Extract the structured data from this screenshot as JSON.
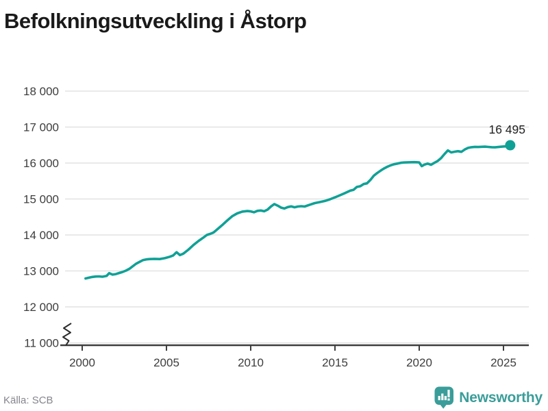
{
  "header": {
    "title": "Befolkningsutveckling i Åstorp"
  },
  "footer": {
    "source": "Källa: SCB",
    "brand": "Newsworthy"
  },
  "colors": {
    "line": "#10a196",
    "grid": "#e2e2e2",
    "axis": "#3d3d3d",
    "tick_text": "#3d3d3d",
    "title_text": "#1a1a1a",
    "source_text": "#85858d",
    "brand_teal": "#3a9d99"
  },
  "chart_data": {
    "type": "line",
    "title": "Befolkningsutveckling i Åstorp",
    "xlabel": "",
    "ylabel": "",
    "grid": "horizontal",
    "axis_break_at_bottom": true,
    "xlim": [
      1998.9,
      2026.5
    ],
    "ylim": [
      11000,
      18000
    ],
    "x_ticks": [
      2000,
      2005,
      2010,
      2015,
      2020,
      2025
    ],
    "y_ticks": [
      11000,
      12000,
      13000,
      14000,
      15000,
      16000,
      17000,
      18000
    ],
    "y_tick_labels": [
      "11 000",
      "12 000",
      "13 000",
      "14 000",
      "15 000",
      "16 000",
      "17 000",
      "18 000"
    ],
    "end_label": "16 495",
    "end_value": 16495,
    "series": [
      {
        "name": "Befolkning",
        "color": "#10a196",
        "points": [
          [
            2000.2,
            12790
          ],
          [
            2000.4,
            12812
          ],
          [
            2000.6,
            12833
          ],
          [
            2000.8,
            12843
          ],
          [
            2001.0,
            12848
          ],
          [
            2001.2,
            12838
          ],
          [
            2001.45,
            12862
          ],
          [
            2001.6,
            12938
          ],
          [
            2001.8,
            12898
          ],
          [
            2002.0,
            12912
          ],
          [
            2002.2,
            12942
          ],
          [
            2002.4,
            12972
          ],
          [
            2002.6,
            13010
          ],
          [
            2002.8,
            13060
          ],
          [
            2003.0,
            13130
          ],
          [
            2003.2,
            13200
          ],
          [
            2003.4,
            13250
          ],
          [
            2003.6,
            13300
          ],
          [
            2003.8,
            13320
          ],
          [
            2004.0,
            13330
          ],
          [
            2004.3,
            13335
          ],
          [
            2004.6,
            13330
          ],
          [
            2004.9,
            13355
          ],
          [
            2005.2,
            13395
          ],
          [
            2005.4,
            13430
          ],
          [
            2005.6,
            13520
          ],
          [
            2005.8,
            13440
          ],
          [
            2006.0,
            13480
          ],
          [
            2006.3,
            13590
          ],
          [
            2006.6,
            13720
          ],
          [
            2006.9,
            13830
          ],
          [
            2007.2,
            13930
          ],
          [
            2007.4,
            14000
          ],
          [
            2007.6,
            14030
          ],
          [
            2007.8,
            14070
          ],
          [
            2008.0,
            14150
          ],
          [
            2008.3,
            14270
          ],
          [
            2008.6,
            14400
          ],
          [
            2008.9,
            14520
          ],
          [
            2009.2,
            14600
          ],
          [
            2009.5,
            14650
          ],
          [
            2009.8,
            14665
          ],
          [
            2010.0,
            14655
          ],
          [
            2010.2,
            14630
          ],
          [
            2010.4,
            14670
          ],
          [
            2010.6,
            14680
          ],
          [
            2010.8,
            14660
          ],
          [
            2011.0,
            14705
          ],
          [
            2011.2,
            14790
          ],
          [
            2011.4,
            14860
          ],
          [
            2011.6,
            14815
          ],
          [
            2011.8,
            14760
          ],
          [
            2012.0,
            14735
          ],
          [
            2012.2,
            14775
          ],
          [
            2012.4,
            14795
          ],
          [
            2012.6,
            14770
          ],
          [
            2012.8,
            14790
          ],
          [
            2013.0,
            14800
          ],
          [
            2013.2,
            14790
          ],
          [
            2013.5,
            14840
          ],
          [
            2013.8,
            14885
          ],
          [
            2014.1,
            14915
          ],
          [
            2014.4,
            14945
          ],
          [
            2014.7,
            14990
          ],
          [
            2015.0,
            15045
          ],
          [
            2015.3,
            15105
          ],
          [
            2015.6,
            15165
          ],
          [
            2015.9,
            15230
          ],
          [
            2016.1,
            15255
          ],
          [
            2016.3,
            15335
          ],
          [
            2016.5,
            15355
          ],
          [
            2016.7,
            15415
          ],
          [
            2016.9,
            15435
          ],
          [
            2017.1,
            15530
          ],
          [
            2017.3,
            15645
          ],
          [
            2017.5,
            15720
          ],
          [
            2017.7,
            15785
          ],
          [
            2017.9,
            15845
          ],
          [
            2018.1,
            15895
          ],
          [
            2018.3,
            15935
          ],
          [
            2018.5,
            15965
          ],
          [
            2018.7,
            15985
          ],
          [
            2018.9,
            16005
          ],
          [
            2019.1,
            16015
          ],
          [
            2019.4,
            16020
          ],
          [
            2019.7,
            16025
          ],
          [
            2019.9,
            16020
          ],
          [
            2020.0,
            16015
          ],
          [
            2020.15,
            15915
          ],
          [
            2020.3,
            15955
          ],
          [
            2020.5,
            15985
          ],
          [
            2020.7,
            15950
          ],
          [
            2020.9,
            16005
          ],
          [
            2021.1,
            16060
          ],
          [
            2021.3,
            16140
          ],
          [
            2021.5,
            16250
          ],
          [
            2021.7,
            16350
          ],
          [
            2021.9,
            16295
          ],
          [
            2022.1,
            16315
          ],
          [
            2022.3,
            16330
          ],
          [
            2022.5,
            16310
          ],
          [
            2022.7,
            16375
          ],
          [
            2022.9,
            16420
          ],
          [
            2023.1,
            16440
          ],
          [
            2023.3,
            16450
          ],
          [
            2023.5,
            16445
          ],
          [
            2023.7,
            16452
          ],
          [
            2023.9,
            16455
          ],
          [
            2024.1,
            16448
          ],
          [
            2024.3,
            16440
          ],
          [
            2024.5,
            16436
          ],
          [
            2024.7,
            16445
          ],
          [
            2024.9,
            16455
          ],
          [
            2025.1,
            16462
          ],
          [
            2025.25,
            16470
          ],
          [
            2025.4,
            16495
          ]
        ]
      }
    ]
  }
}
